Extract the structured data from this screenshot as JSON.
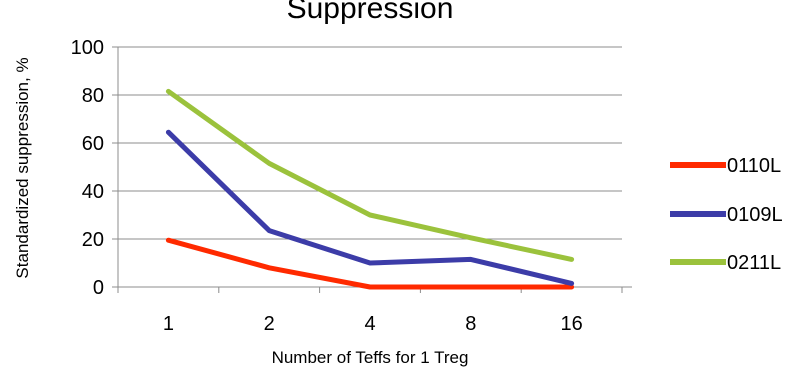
{
  "chart_data": {
    "type": "line",
    "title": "Suppression",
    "xlabel": "Number of Teffs for 1 Treg",
    "ylabel": "Standardized suppression, %",
    "categories": [
      "1",
      "2",
      "4",
      "8",
      "16"
    ],
    "ylim": [
      0,
      100
    ],
    "yticks": [
      0,
      20,
      40,
      60,
      80,
      100
    ],
    "grid": "horizontal",
    "legend": "right",
    "series": [
      {
        "name": "0110L",
        "color": "#ff2a00",
        "values": [
          19.5,
          8,
          0,
          0,
          0
        ]
      },
      {
        "name": "0109L",
        "color": "#3c3ca8",
        "values": [
          64.5,
          23.5,
          10,
          11.5,
          1.5
        ]
      },
      {
        "name": "0211L",
        "color": "#9bc23c",
        "values": [
          81.5,
          51.5,
          30,
          20.5,
          11.5
        ]
      }
    ]
  }
}
